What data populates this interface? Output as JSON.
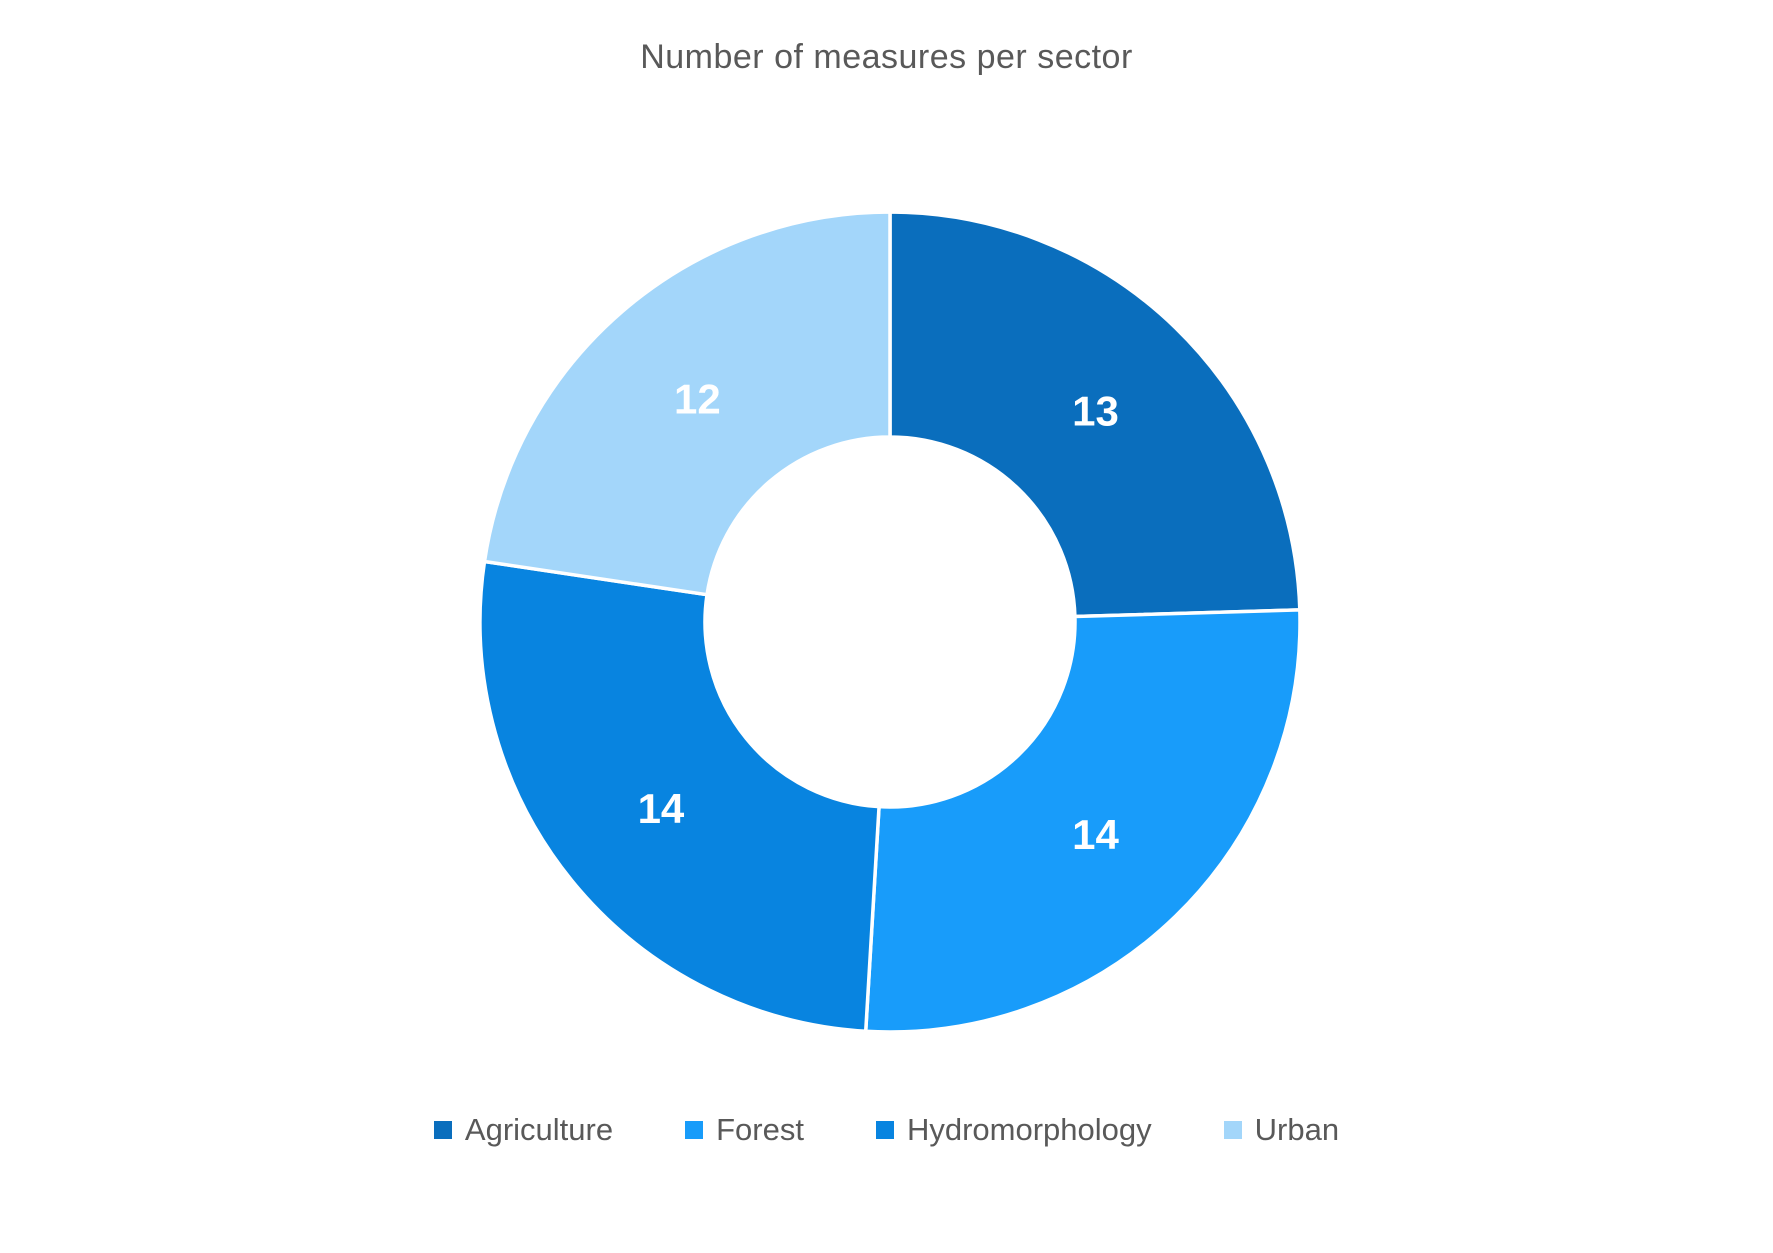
{
  "chart_data": {
    "type": "pie",
    "subtype": "donut",
    "title": "Number of measures per sector",
    "series": [
      {
        "label": "Agriculture",
        "value": 13,
        "color": "#0A6EBD"
      },
      {
        "label": "Forest",
        "value": 14,
        "color": "#189CFA"
      },
      {
        "label": "Hydromorphology",
        "value": 14,
        "color": "#0884E0"
      },
      {
        "label": "Urban",
        "value": 12,
        "color": "#A3D6FA"
      }
    ],
    "data_labels": [
      "13",
      "14",
      "14",
      "12"
    ],
    "data_label_color": "#ffffff",
    "legend_position": "bottom",
    "start_angle_deg": 0,
    "direction": "clockwise",
    "hole_ratio": 0.45
  },
  "styles": {
    "title_color": "#595959",
    "legend_text_color": "#595959",
    "background": "#ffffff"
  }
}
